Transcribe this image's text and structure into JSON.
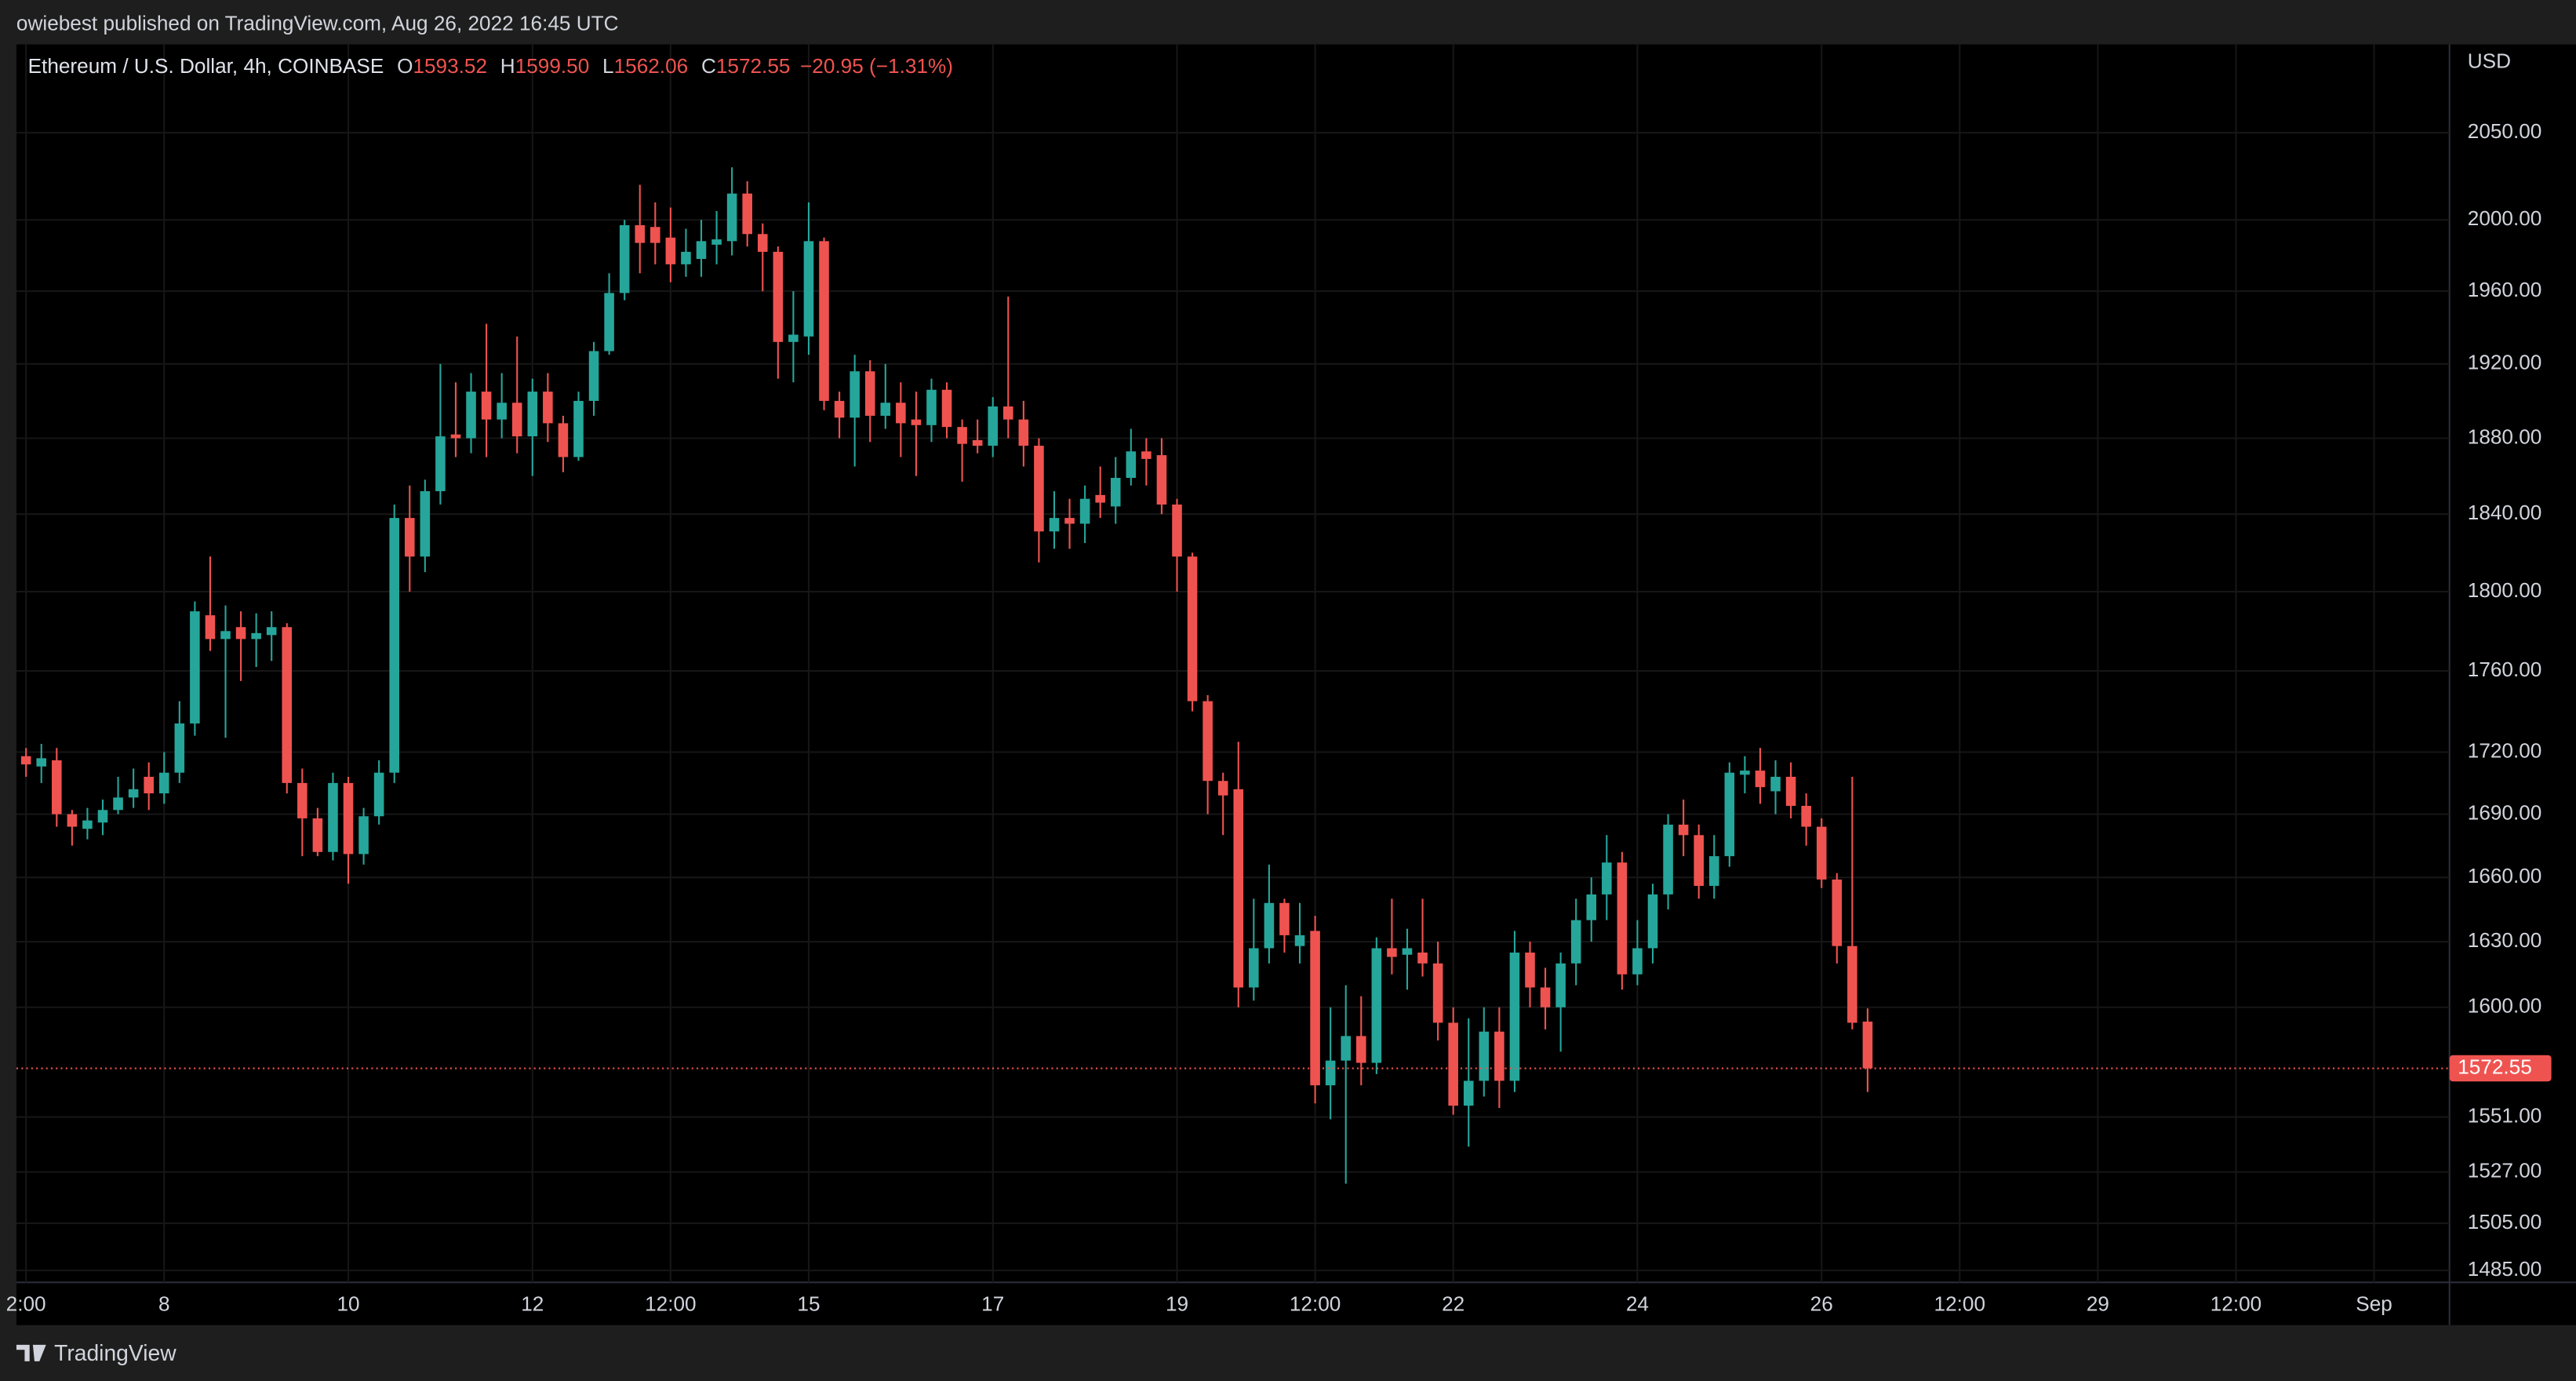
{
  "top_bar": {
    "text": "owiebest published on TradingView.com, Aug 26, 2022 16:45 UTC"
  },
  "footer": {
    "brand": "TradingView"
  },
  "chart_data": {
    "type": "candlestick",
    "header": {
      "symbol": "Ethereum / U.S. Dollar, 4h, COINBASE",
      "fields": [
        {
          "label": "O",
          "value": "1593.52"
        },
        {
          "label": "H",
          "value": "1599.50"
        },
        {
          "label": "L",
          "value": "1562.06"
        },
        {
          "label": "C",
          "value": "1572.55"
        }
      ],
      "change": "−20.95 (−1.31%)"
    },
    "currency": "USD",
    "last_price_label": "1572.55",
    "up_color": "#26a69a",
    "down_color": "#ef5350",
    "grid": true,
    "log_scale": true,
    "ylim": [
      1480,
      2102
    ],
    "yticks": [
      {
        "value": 2050,
        "label": "2050.00"
      },
      {
        "value": 2000,
        "label": "2000.00"
      },
      {
        "value": 1960,
        "label": "1960.00"
      },
      {
        "value": 1920,
        "label": "1920.00"
      },
      {
        "value": 1880,
        "label": "1880.00"
      },
      {
        "value": 1840,
        "label": "1840.00"
      },
      {
        "value": 1800,
        "label": "1800.00"
      },
      {
        "value": 1760,
        "label": "1760.00"
      },
      {
        "value": 1720,
        "label": "1720.00"
      },
      {
        "value": 1690,
        "label": "1690.00"
      },
      {
        "value": 1660,
        "label": "1660.00"
      },
      {
        "value": 1630,
        "label": "1630.00"
      },
      {
        "value": 1600,
        "label": "1600.00"
      },
      {
        "value": 1551,
        "label": "1551.00"
      },
      {
        "value": 1527,
        "label": "1527.00"
      },
      {
        "value": 1505,
        "label": "1505.00"
      },
      {
        "value": 1485,
        "label": "1485.00"
      }
    ],
    "xlim": [
      "2022-08-06T09:30Z",
      "2022-09-01T19:40Z"
    ],
    "xticks": [
      {
        "value": "2022-08-06T12:00Z",
        "label": "2:00"
      },
      {
        "value": "2022-08-08T00:00Z",
        "label": "8"
      },
      {
        "value": "2022-08-10T00:00Z",
        "label": "10"
      },
      {
        "value": "2022-08-12T00:00Z",
        "label": "12"
      },
      {
        "value": "2022-08-13T12:00Z",
        "label": "12:00"
      },
      {
        "value": "2022-08-15T00:00Z",
        "label": "15"
      },
      {
        "value": "2022-08-17T00:00Z",
        "label": "17"
      },
      {
        "value": "2022-08-19T00:00Z",
        "label": "19"
      },
      {
        "value": "2022-08-20T12:00Z",
        "label": "12:00"
      },
      {
        "value": "2022-08-22T00:00Z",
        "label": "22"
      },
      {
        "value": "2022-08-24T00:00Z",
        "label": "24"
      },
      {
        "value": "2022-08-26T00:00Z",
        "label": "26"
      },
      {
        "value": "2022-08-27T12:00Z",
        "label": "12:00"
      },
      {
        "value": "2022-08-29T00:00Z",
        "label": "29"
      },
      {
        "value": "2022-08-30T12:00Z",
        "label": "12:00"
      },
      {
        "value": "2022-09-01T00:00Z",
        "label": "Sep"
      }
    ],
    "x": [
      "2022-08-06T12:00Z",
      "2022-08-06T16:00Z",
      "2022-08-06T20:00Z",
      "2022-08-07T00:00Z",
      "2022-08-07T04:00Z",
      "2022-08-07T08:00Z",
      "2022-08-07T12:00Z",
      "2022-08-07T16:00Z",
      "2022-08-07T20:00Z",
      "2022-08-08T00:00Z",
      "2022-08-08T04:00Z",
      "2022-08-08T08:00Z",
      "2022-08-08T12:00Z",
      "2022-08-08T16:00Z",
      "2022-08-08T20:00Z",
      "2022-08-09T00:00Z",
      "2022-08-09T04:00Z",
      "2022-08-09T08:00Z",
      "2022-08-09T12:00Z",
      "2022-08-09T16:00Z",
      "2022-08-09T20:00Z",
      "2022-08-10T00:00Z",
      "2022-08-10T04:00Z",
      "2022-08-10T08:00Z",
      "2022-08-10T12:00Z",
      "2022-08-10T16:00Z",
      "2022-08-10T20:00Z",
      "2022-08-11T00:00Z",
      "2022-08-11T04:00Z",
      "2022-08-11T08:00Z",
      "2022-08-11T12:00Z",
      "2022-08-11T16:00Z",
      "2022-08-11T20:00Z",
      "2022-08-12T00:00Z",
      "2022-08-12T04:00Z",
      "2022-08-12T08:00Z",
      "2022-08-12T12:00Z",
      "2022-08-12T16:00Z",
      "2022-08-12T20:00Z",
      "2022-08-13T00:00Z",
      "2022-08-13T04:00Z",
      "2022-08-13T08:00Z",
      "2022-08-13T12:00Z",
      "2022-08-13T16:00Z",
      "2022-08-13T20:00Z",
      "2022-08-14T00:00Z",
      "2022-08-14T04:00Z",
      "2022-08-14T08:00Z",
      "2022-08-14T12:00Z",
      "2022-08-14T16:00Z",
      "2022-08-14T20:00Z",
      "2022-08-15T00:00Z",
      "2022-08-15T04:00Z",
      "2022-08-15T08:00Z",
      "2022-08-15T12:00Z",
      "2022-08-15T16:00Z",
      "2022-08-15T20:00Z",
      "2022-08-16T00:00Z",
      "2022-08-16T04:00Z",
      "2022-08-16T08:00Z",
      "2022-08-16T12:00Z",
      "2022-08-16T16:00Z",
      "2022-08-16T20:00Z",
      "2022-08-17T00:00Z",
      "2022-08-17T04:00Z",
      "2022-08-17T08:00Z",
      "2022-08-17T12:00Z",
      "2022-08-17T16:00Z",
      "2022-08-17T20:00Z",
      "2022-08-18T00:00Z",
      "2022-08-18T04:00Z",
      "2022-08-18T08:00Z",
      "2022-08-18T12:00Z",
      "2022-08-18T16:00Z",
      "2022-08-18T20:00Z",
      "2022-08-19T00:00Z",
      "2022-08-19T04:00Z",
      "2022-08-19T08:00Z",
      "2022-08-19T12:00Z",
      "2022-08-19T16:00Z",
      "2022-08-19T20:00Z",
      "2022-08-20T00:00Z",
      "2022-08-20T04:00Z",
      "2022-08-20T08:00Z",
      "2022-08-20T12:00Z",
      "2022-08-20T16:00Z",
      "2022-08-20T20:00Z",
      "2022-08-21T00:00Z",
      "2022-08-21T04:00Z",
      "2022-08-21T08:00Z",
      "2022-08-21T12:00Z",
      "2022-08-21T16:00Z",
      "2022-08-21T20:00Z",
      "2022-08-22T00:00Z",
      "2022-08-22T04:00Z",
      "2022-08-22T08:00Z",
      "2022-08-22T12:00Z",
      "2022-08-22T16:00Z",
      "2022-08-22T20:00Z",
      "2022-08-23T00:00Z",
      "2022-08-23T04:00Z",
      "2022-08-23T08:00Z",
      "2022-08-23T12:00Z",
      "2022-08-23T16:00Z",
      "2022-08-23T20:00Z",
      "2022-08-24T00:00Z",
      "2022-08-24T04:00Z",
      "2022-08-24T08:00Z",
      "2022-08-24T12:00Z",
      "2022-08-24T16:00Z",
      "2022-08-24T20:00Z",
      "2022-08-25T00:00Z",
      "2022-08-25T04:00Z",
      "2022-08-25T08:00Z",
      "2022-08-25T12:00Z",
      "2022-08-25T16:00Z",
      "2022-08-25T20:00Z",
      "2022-08-26T00:00Z",
      "2022-08-26T04:00Z",
      "2022-08-26T08:00Z",
      "2022-08-26T12:00Z"
    ],
    "open": [
      1718,
      1713,
      1716,
      1690,
      1683,
      1686,
      1692,
      1698,
      1708,
      1700,
      1710,
      1734,
      1788,
      1776,
      1782,
      1776,
      1778,
      1782,
      1705,
      1688,
      1672,
      1705,
      1671,
      1689,
      1710,
      1838,
      1818,
      1852,
      1882,
      1880,
      1905,
      1890,
      1899,
      1881,
      1905,
      1888,
      1870,
      1900,
      1927,
      1959,
      1997,
      1996,
      1990,
      1975,
      1978,
      1986,
      1988,
      2015,
      1992,
      1982,
      1932,
      1935,
      1988,
      1900,
      1891,
      1916,
      1892,
      1899,
      1890,
      1887,
      1906,
      1886,
      1879,
      1876,
      1897,
      1890,
      1876,
      1831,
      1838,
      1835,
      1850,
      1844,
      1859,
      1873,
      1871,
      1845,
      1818,
      1745,
      1706,
      1702,
      1609,
      1627,
      1648,
      1628,
      1635,
      1565,
      1576,
      1587,
      1575,
      1627,
      1624,
      1625,
      1620,
      1593,
      1556,
      1567,
      1589,
      1567,
      1625,
      1609,
      1600,
      1620,
      1640,
      1652,
      1667,
      1615,
      1627,
      1652,
      1685,
      1680,
      1656,
      1670,
      1709,
      1711,
      1701,
      1708,
      1694,
      1684,
      1659,
      1628,
      1593.52
    ],
    "high": [
      1722,
      1724,
      1722,
      1692,
      1693,
      1697,
      1708,
      1712,
      1715,
      1720,
      1745,
      1795,
      1818,
      1793,
      1790,
      1789,
      1790,
      1784,
      1712,
      1693,
      1710,
      1708,
      1693,
      1716,
      1845,
      1855,
      1858,
      1920,
      1910,
      1915,
      1942,
      1915,
      1935,
      1912,
      1915,
      1892,
      1905,
      1932,
      1970,
      2000,
      2020,
      2010,
      2007,
      1995,
      2000,
      2005,
      2030,
      2022,
      1998,
      1985,
      1960,
      2010,
      1990,
      1905,
      1925,
      1922,
      1920,
      1910,
      1905,
      1912,
      1910,
      1890,
      1890,
      1902,
      1957,
      1900,
      1880,
      1852,
      1848,
      1855,
      1865,
      1870,
      1885,
      1880,
      1880,
      1848,
      1820,
      1748,
      1710,
      1725,
      1650,
      1666,
      1650,
      1648,
      1642,
      1600,
      1610,
      1605,
      1632,
      1650,
      1636,
      1650,
      1630,
      1600,
      1595,
      1600,
      1600,
      1635,
      1630,
      1618,
      1625,
      1650,
      1660,
      1680,
      1672,
      1640,
      1657,
      1690,
      1697,
      1685,
      1680,
      1715,
      1718,
      1722,
      1716,
      1715,
      1700,
      1688,
      1662,
      1708,
      1599.5
    ],
    "low": [
      1708,
      1705,
      1684,
      1675,
      1678,
      1680,
      1690,
      1693,
      1692,
      1695,
      1705,
      1728,
      1770,
      1727,
      1755,
      1762,
      1765,
      1700,
      1670,
      1670,
      1668,
      1657,
      1666,
      1685,
      1705,
      1800,
      1810,
      1845,
      1870,
      1872,
      1870,
      1880,
      1872,
      1860,
      1878,
      1862,
      1868,
      1892,
      1925,
      1955,
      1970,
      1975,
      1965,
      1968,
      1968,
      1975,
      1980,
      1985,
      1960,
      1912,
      1910,
      1925,
      1895,
      1880,
      1865,
      1878,
      1885,
      1870,
      1860,
      1878,
      1880,
      1857,
      1872,
      1870,
      1880,
      1865,
      1815,
      1822,
      1822,
      1825,
      1838,
      1835,
      1855,
      1855,
      1840,
      1800,
      1740,
      1690,
      1680,
      1600,
      1603,
      1620,
      1625,
      1620,
      1557,
      1550,
      1522,
      1565,
      1570,
      1615,
      1608,
      1614,
      1585,
      1552,
      1538,
      1560,
      1555,
      1562,
      1600,
      1590,
      1580,
      1610,
      1630,
      1640,
      1608,
      1610,
      1620,
      1645,
      1670,
      1650,
      1650,
      1665,
      1700,
      1695,
      1690,
      1688,
      1675,
      1655,
      1620,
      1590,
      1562.06
    ],
    "close": [
      1714,
      1717,
      1690,
      1684,
      1687,
      1692,
      1698,
      1702,
      1700,
      1710,
      1734,
      1790,
      1776,
      1780,
      1776,
      1779,
      1782,
      1705,
      1688,
      1672,
      1705,
      1671,
      1689,
      1710,
      1838,
      1818,
      1852,
      1881,
      1880,
      1905,
      1890,
      1899,
      1881,
      1905,
      1888,
      1870,
      1900,
      1927,
      1959,
      1997,
      1987,
      1987,
      1975,
      1982,
      1988,
      1989,
      2015,
      1992,
      1982,
      1932,
      1936,
      1988,
      1900,
      1891,
      1916,
      1892,
      1899,
      1888,
      1887,
      1906,
      1886,
      1877,
      1876,
      1897,
      1890,
      1876,
      1831,
      1838,
      1835,
      1848,
      1846,
      1859,
      1873,
      1869,
      1845,
      1818,
      1745,
      1706,
      1699,
      1609,
      1627,
      1648,
      1633,
      1633,
      1565,
      1576,
      1587,
      1575,
      1627,
      1623,
      1627,
      1620,
      1593,
      1556,
      1567,
      1589,
      1567,
      1625,
      1609,
      1600,
      1620,
      1640,
      1652,
      1667,
      1615,
      1627,
      1652,
      1685,
      1680,
      1656,
      1670,
      1710,
      1711,
      1703,
      1708,
      1694,
      1684,
      1659,
      1628,
      1593,
      1572.55
    ]
  }
}
